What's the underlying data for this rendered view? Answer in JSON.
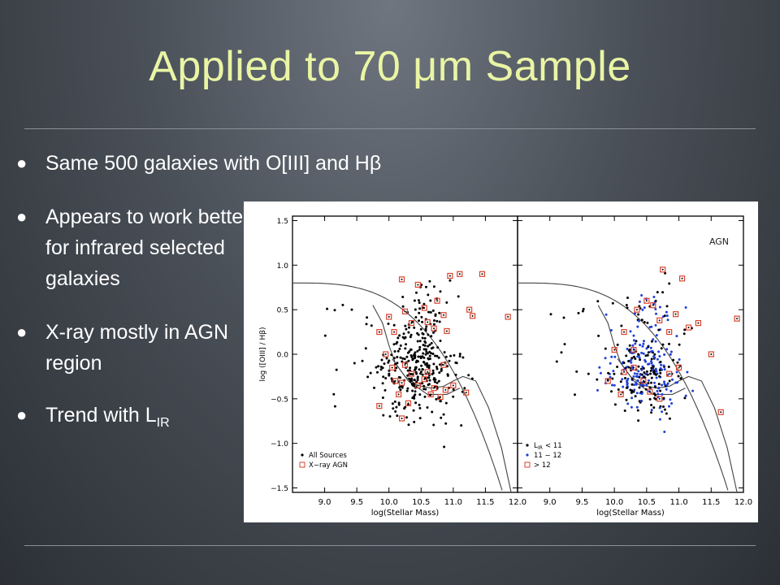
{
  "slide": {
    "title": "Applied to 70 μm Sample",
    "bullets": [
      {
        "text": "Same 500 galaxies with O[III] and Hβ"
      },
      {
        "text": "Appears to work better for infrared selected galaxies"
      },
      {
        "text": "X-ray mostly in AGN region"
      },
      {
        "text": "Trend with L",
        "sub": "IR"
      }
    ],
    "colors": {
      "title": "#e9f5a4",
      "text": "#ffffff",
      "xray": "#d9442f",
      "blue": "#1f3fd6"
    }
  },
  "chart_data": [
    {
      "type": "scatter",
      "panel": "left",
      "xlabel": "log(Stellar Mass)",
      "ylabel": "log ([OIII] / Hβ)",
      "xlim": [
        8.5,
        12.0
      ],
      "ylim": [
        -1.55,
        1.55
      ],
      "xticks": [
        "9.0",
        "9.5",
        "10.0",
        "10.5",
        "11.0",
        "11.5",
        "12.0"
      ],
      "yticks": [
        "1.5",
        "1.0",
        "0.5",
        "0.0",
        "−0.5",
        "−1.0",
        "−1.5"
      ],
      "legend": [
        "All Sources",
        "X−ray AGN"
      ],
      "series": [
        {
          "name": "X−ray AGN",
          "marker": "square",
          "points": [
            [
              9.85,
              0.25
            ],
            [
              10.0,
              0.42
            ],
            [
              10.08,
              0.25
            ],
            [
              10.2,
              0.84
            ],
            [
              10.25,
              0.48
            ],
            [
              10.35,
              0.35
            ],
            [
              10.45,
              0.78
            ],
            [
              10.55,
              0.52
            ],
            [
              10.6,
              0.36
            ],
            [
              10.7,
              0.29
            ],
            [
              10.75,
              0.6
            ],
            [
              10.85,
              0.44
            ],
            [
              10.9,
              0.26
            ],
            [
              10.95,
              0.88
            ],
            [
              11.1,
              0.9
            ],
            [
              11.25,
              0.5
            ],
            [
              11.3,
              0.43
            ],
            [
              11.45,
              0.9
            ],
            [
              11.85,
              0.42
            ],
            [
              9.95,
              0.0
            ],
            [
              10.05,
              -0.15
            ],
            [
              10.1,
              -0.3
            ],
            [
              10.2,
              -0.32
            ],
            [
              10.25,
              -0.12
            ],
            [
              10.35,
              -0.22
            ],
            [
              10.45,
              -0.35
            ],
            [
              10.55,
              -0.28
            ],
            [
              10.65,
              -0.45
            ],
            [
              10.7,
              -0.38
            ],
            [
              10.8,
              -0.48
            ],
            [
              10.88,
              -0.4
            ],
            [
              11.0,
              -0.35
            ],
            [
              11.2,
              -0.43
            ],
            [
              9.85,
              -0.58
            ],
            [
              10.15,
              -0.45
            ],
            [
              10.3,
              -0.55
            ],
            [
              10.2,
              -0.72
            ],
            [
              10.6,
              -0.2
            ],
            [
              10.85,
              -0.12
            ]
          ]
        }
      ]
    },
    {
      "type": "scatter",
      "panel": "right",
      "xlabel": "log(Stellar Mass)",
      "xlim": [
        8.5,
        12.0
      ],
      "ylim": [
        -1.55,
        1.55
      ],
      "xticks": [
        "9.0",
        "9.5",
        "10.0",
        "10.5",
        "11.0",
        "11.5",
        "12.0"
      ],
      "annotation": "AGN",
      "legend": [
        "L<sub>IR</sub> < 11",
        "11 − 12",
        "> 12"
      ],
      "legend_text": [
        "< 11",
        "11 − 12",
        "> 12"
      ],
      "series": [
        {
          "name": "> 12",
          "marker": "square",
          "points": [
            [
              9.9,
              -0.3
            ],
            [
              10.0,
              0.05
            ],
            [
              10.15,
              0.25
            ],
            [
              10.35,
              0.5
            ],
            [
              10.5,
              0.6
            ],
            [
              10.6,
              0.55
            ],
            [
              10.7,
              0.38
            ],
            [
              10.75,
              0.95
            ],
            [
              10.85,
              0.25
            ],
            [
              10.95,
              0.45
            ],
            [
              11.05,
              0.85
            ],
            [
              11.15,
              0.3
            ],
            [
              11.3,
              0.35
            ],
            [
              11.5,
              0.0
            ],
            [
              11.9,
              0.4
            ],
            [
              11.65,
              -0.65
            ],
            [
              10.1,
              -0.45
            ],
            [
              10.3,
              -0.15
            ],
            [
              10.45,
              -0.3
            ],
            [
              10.55,
              -0.42
            ],
            [
              10.7,
              -0.5
            ],
            [
              10.85,
              -0.22
            ],
            [
              11.0,
              -0.15
            ],
            [
              10.3,
              0.05
            ],
            [
              10.15,
              -0.2
            ]
          ]
        }
      ]
    }
  ]
}
